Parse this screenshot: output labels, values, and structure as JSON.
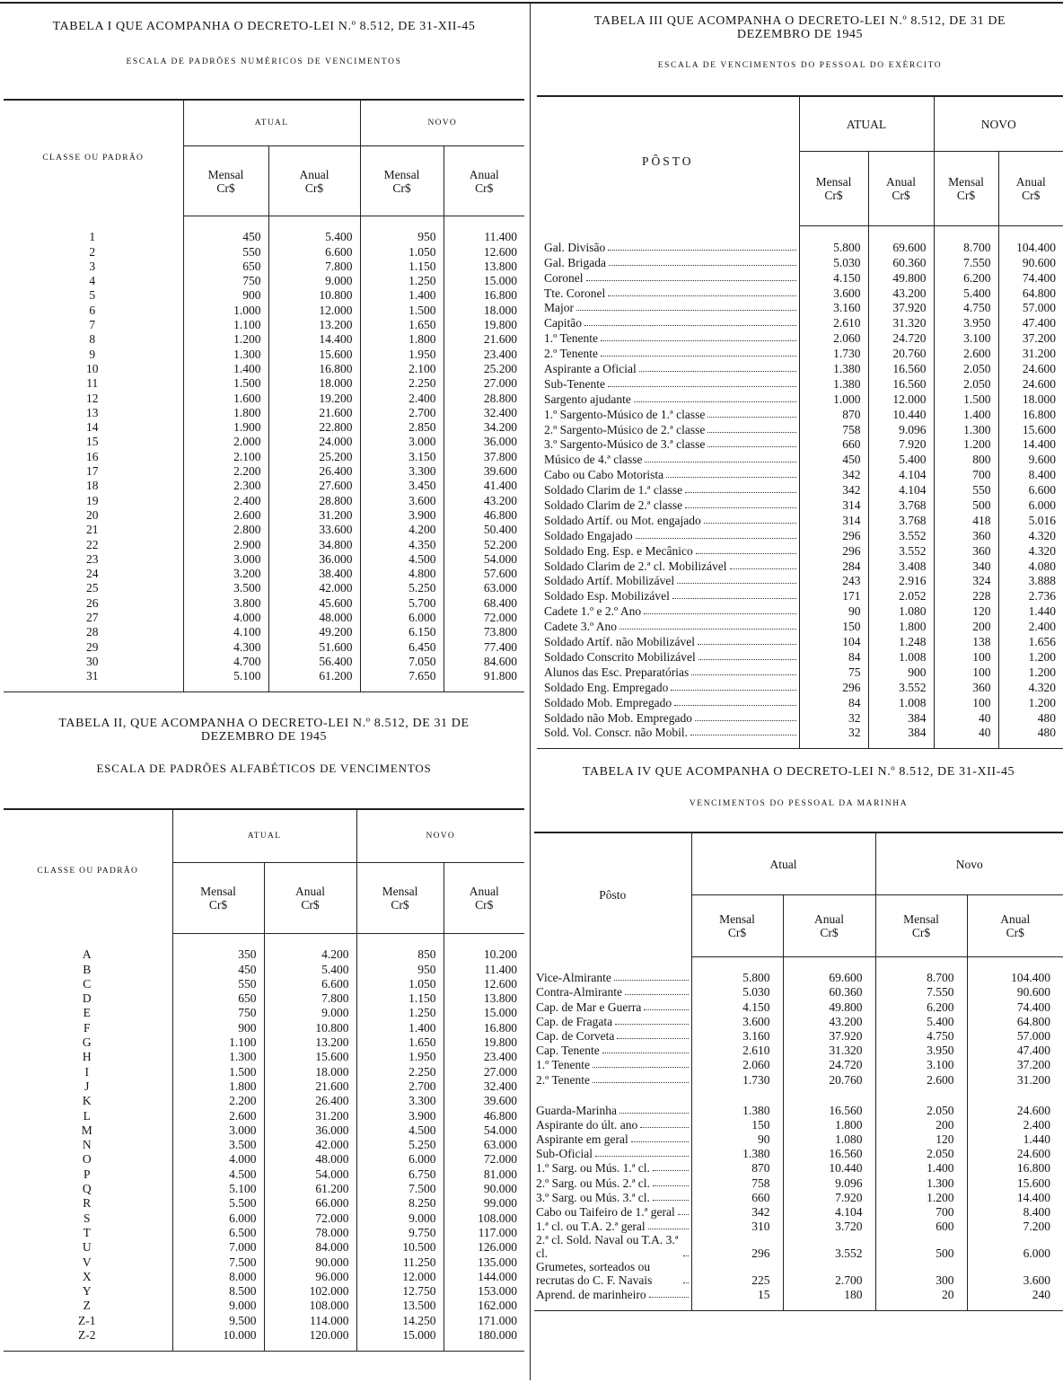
{
  "tables": [
    {
      "title": "TABELA I QUE ACOMPANHA O DECRETO-LEI N.º 8.512, DE 31-XII-45",
      "subtitle": "ESCALA DE PADRÕES NUMÉRICOS DE VENCIMENTOS",
      "label_header": "CLASSE OU PADRÃO",
      "group_headers": [
        "ATUAL",
        "NOVO"
      ],
      "column_headers": [
        "Mensal\nCr$",
        "Anual\nCr$",
        "Mensal\nCr$",
        "Anual\nCr$"
      ],
      "rows": [
        [
          "1",
          "450",
          "5.400",
          "950",
          "11.400"
        ],
        [
          "2",
          "550",
          "6.600",
          "1.050",
          "12.600"
        ],
        [
          "3",
          "650",
          "7.800",
          "1.150",
          "13.800"
        ],
        [
          "4",
          "750",
          "9.000",
          "1.250",
          "15.000"
        ],
        [
          "5",
          "900",
          "10.800",
          "1.400",
          "16.800"
        ],
        [
          "6",
          "1.000",
          "12.000",
          "1.500",
          "18.000"
        ],
        [
          "7",
          "1.100",
          "13.200",
          "1.650",
          "19.800"
        ],
        [
          "8",
          "1.200",
          "14.400",
          "1.800",
          "21.600"
        ],
        [
          "9",
          "1.300",
          "15.600",
          "1.950",
          "23.400"
        ],
        [
          "10",
          "1.400",
          "16.800",
          "2.100",
          "25.200"
        ],
        [
          "11",
          "1.500",
          "18.000",
          "2.250",
          "27.000"
        ],
        [
          "12",
          "1.600",
          "19.200",
          "2.400",
          "28.800"
        ],
        [
          "13",
          "1.800",
          "21.600",
          "2.700",
          "32.400"
        ],
        [
          "14",
          "1.900",
          "22.800",
          "2.850",
          "34.200"
        ],
        [
          "15",
          "2.000",
          "24.000",
          "3.000",
          "36.000"
        ],
        [
          "16",
          "2.100",
          "25.200",
          "3.150",
          "37.800"
        ],
        [
          "17",
          "2.200",
          "26.400",
          "3.300",
          "39.600"
        ],
        [
          "18",
          "2.300",
          "27.600",
          "3.450",
          "41.400"
        ],
        [
          "19",
          "2.400",
          "28.800",
          "3.600",
          "43.200"
        ],
        [
          "20",
          "2.600",
          "31.200",
          "3.900",
          "46.800"
        ],
        [
          "21",
          "2.800",
          "33.600",
          "4.200",
          "50.400"
        ],
        [
          "22",
          "2.900",
          "34.800",
          "4.350",
          "52.200"
        ],
        [
          "23",
          "3.000",
          "36.000",
          "4.500",
          "54.000"
        ],
        [
          "24",
          "3.200",
          "38.400",
          "4.800",
          "57.600"
        ],
        [
          "25",
          "3.500",
          "42.000",
          "5.250",
          "63.000"
        ],
        [
          "26",
          "3.800",
          "45.600",
          "5.700",
          "68.400"
        ],
        [
          "27",
          "4.000",
          "48.000",
          "6.000",
          "72.000"
        ],
        [
          "28",
          "4.100",
          "49.200",
          "6.150",
          "73.800"
        ],
        [
          "29",
          "4.300",
          "51.600",
          "6.450",
          "77.400"
        ],
        [
          "30",
          "4.700",
          "56.400",
          "7.050",
          "84.600"
        ],
        [
          "31",
          "5.100",
          "61.200",
          "7.650",
          "91.800"
        ]
      ]
    },
    {
      "title": "TABELA II, QUE ACOMPANHA O DECRETO-LEI N.º 8.512, DE 31 DE\nDEZEMBRO DE 1945",
      "subtitle": "ESCALA DE PADRÕES ALFABÉTICOS DE VENCIMENTOS",
      "label_header": "CLASSE OU PADRÃO",
      "group_headers": [
        "ATUAL",
        "NOVO"
      ],
      "column_headers": [
        "Mensal\nCr$",
        "Anual\nCr$",
        "Mensal\nCr$",
        "Anual\nCr$"
      ],
      "rows": [
        [
          "A",
          "350",
          "4.200",
          "850",
          "10.200"
        ],
        [
          "B",
          "450",
          "5.400",
          "950",
          "11.400"
        ],
        [
          "C",
          "550",
          "6.600",
          "1.050",
          "12.600"
        ],
        [
          "D",
          "650",
          "7.800",
          "1.150",
          "13.800"
        ],
        [
          "E",
          "750",
          "9.000",
          "1.250",
          "15.000"
        ],
        [
          "F",
          "900",
          "10.800",
          "1.400",
          "16.800"
        ],
        [
          "G",
          "1.100",
          "13.200",
          "1.650",
          "19.800"
        ],
        [
          "H",
          "1.300",
          "15.600",
          "1.950",
          "23.400"
        ],
        [
          "I",
          "1.500",
          "18.000",
          "2.250",
          "27.000"
        ],
        [
          "J",
          "1.800",
          "21.600",
          "2.700",
          "32.400"
        ],
        [
          "K",
          "2.200",
          "26.400",
          "3.300",
          "39.600"
        ],
        [
          "L",
          "2.600",
          "31.200",
          "3.900",
          "46.800"
        ],
        [
          "M",
          "3.000",
          "36.000",
          "4.500",
          "54.000"
        ],
        [
          "N",
          "3.500",
          "42.000",
          "5.250",
          "63.000"
        ],
        [
          "O",
          "4.000",
          "48.000",
          "6.000",
          "72.000"
        ],
        [
          "P",
          "4.500",
          "54.000",
          "6.750",
          "81.000"
        ],
        [
          "Q",
          "5.100",
          "61.200",
          "7.500",
          "90.000"
        ],
        [
          "R",
          "5.500",
          "66.000",
          "8.250",
          "99.000"
        ],
        [
          "S",
          "6.000",
          "72.000",
          "9.000",
          "108.000"
        ],
        [
          "T",
          "6.500",
          "78.000",
          "9.750",
          "117.000"
        ],
        [
          "U",
          "7.000",
          "84.000",
          "10.500",
          "126.000"
        ],
        [
          "V",
          "7.500",
          "90.000",
          "11.250",
          "135.000"
        ],
        [
          "X",
          "8.000",
          "96.000",
          "12.000",
          "144.000"
        ],
        [
          "Y",
          "8.500",
          "102.000",
          "12.750",
          "153.000"
        ],
        [
          "Z",
          "9.000",
          "108.000",
          "13.500",
          "162.000"
        ],
        [
          "Z-1",
          "9.500",
          "114.000",
          "14.250",
          "171.000"
        ],
        [
          "Z-2",
          "10.000",
          "120.000",
          "15.000",
          "180.000"
        ]
      ]
    },
    {
      "title": "TABELA III QUE ACOMPANHA O DECRETO-LEI N.º 8.512, DE 31 DE\nDEZEMBRO DE 1945",
      "subtitle": "ESCALA DE VENCIMENTOS DO PESSOAL DO EXÉRCITO",
      "label_header": "PÔSTO",
      "group_headers": [
        "ATUAL",
        "NOVO"
      ],
      "column_headers": [
        "Mensal\nCr$",
        "Anual\nCr$",
        "Mensal\nCr$",
        "Anual\nCr$"
      ],
      "rows": [
        [
          "Gal. Divisão",
          "5.800",
          "69.600",
          "8.700",
          "104.400"
        ],
        [
          "Gal. Brigada",
          "5.030",
          "60.360",
          "7.550",
          "90.600"
        ],
        [
          "Coronel",
          "4.150",
          "49.800",
          "6.200",
          "74.400"
        ],
        [
          "Tte. Coronel",
          "3.600",
          "43.200",
          "5.400",
          "64.800"
        ],
        [
          "Major",
          "3.160",
          "37.920",
          "4.750",
          "57.000"
        ],
        [
          "Capitão",
          "2.610",
          "31.320",
          "3.950",
          "47.400"
        ],
        [
          "1.º Tenente",
          "2.060",
          "24.720",
          "3.100",
          "37.200"
        ],
        [
          "2.º Tenente",
          "1.730",
          "20.760",
          "2.600",
          "31.200"
        ],
        [
          "Aspirante a Oficial",
          "1.380",
          "16.560",
          "2.050",
          "24.600"
        ],
        [
          "Sub-Tenente",
          "1.380",
          "16.560",
          "2.050",
          "24.600"
        ],
        [
          "Sargento ajudante",
          "1.000",
          "12.000",
          "1.500",
          "18.000"
        ],
        [
          "1.º Sargento-Músico de 1.ª classe",
          "870",
          "10.440",
          "1.400",
          "16.800"
        ],
        [
          "2.º Sargento-Músico de 2.ª classe",
          "758",
          "9.096",
          "1.300",
          "15.600"
        ],
        [
          "3.º Sargento-Músico de 3.ª classe",
          "660",
          "7.920",
          "1.200",
          "14.400"
        ],
        [
          "Músico de 4.ª classe",
          "450",
          "5.400",
          "800",
          "9.600"
        ],
        [
          "Cabo ou Cabo Motorista",
          "342",
          "4.104",
          "700",
          "8.400"
        ],
        [
          "Soldado Clarim de 1.ª classe",
          "342",
          "4.104",
          "550",
          "6.600"
        ],
        [
          "Soldado Clarim de 2.ª classe",
          "314",
          "3.768",
          "500",
          "6.000"
        ],
        [
          "Soldado Artíf. ou Mot. engajado",
          "314",
          "3.768",
          "418",
          "5.016"
        ],
        [
          "Soldado Engajado",
          "296",
          "3.552",
          "360",
          "4.320"
        ],
        [
          "Soldado Eng. Esp. e Mecânico",
          "296",
          "3.552",
          "360",
          "4.320"
        ],
        [
          "Soldado Clarim de 2.ª cl. Mobilizável",
          "284",
          "3.408",
          "340",
          "4.080"
        ],
        [
          "Soldado Artíf. Mobilizável",
          "243",
          "2.916",
          "324",
          "3.888"
        ],
        [
          "Soldado Esp. Mobilizável",
          "171",
          "2.052",
          "228",
          "2.736"
        ],
        [
          "Cadete 1.º e 2.º Ano",
          "90",
          "1.080",
          "120",
          "1.440"
        ],
        [
          "Cadete 3.º Ano",
          "150",
          "1.800",
          "200",
          "2.400"
        ],
        [
          "Soldado Artíf. não Mobilizável",
          "104",
          "1.248",
          "138",
          "1.656"
        ],
        [
          "Soldado Conscrito Mobilizável",
          "84",
          "1.008",
          "100",
          "1.200"
        ],
        [
          "Alunos das Esc. Preparatórias",
          "75",
          "900",
          "100",
          "1.200"
        ],
        [
          "Soldado Eng. Empregado",
          "296",
          "3.552",
          "360",
          "4.320"
        ],
        [
          "Soldado Mob. Empregado",
          "84",
          "1.008",
          "100",
          "1.200"
        ],
        [
          "Soldado não Mob. Empregado",
          "32",
          "384",
          "40",
          "480"
        ],
        [
          "Sold. Vol. Conscr. não Mobil.",
          "32",
          "384",
          "40",
          "480"
        ]
      ]
    },
    {
      "title": "TABELA IV QUE ACOMPANHA O DECRETO-LEI N.º 8.512, DE 31-XII-45",
      "subtitle": "VENCIMENTOS DO PESSOAL DA MARINHA",
      "label_header": "Pôsto",
      "group_headers": [
        "Atual",
        "Novo"
      ],
      "column_headers": [
        "Mensal\nCr$",
        "Anual\nCr$",
        "Mensal\nCr$",
        "Anual\nCr$"
      ],
      "rows": [
        [
          "Vice-Almirante",
          "5.800",
          "69.600",
          "8.700",
          "104.400"
        ],
        [
          "Contra-Almirante",
          "5.030",
          "60.360",
          "7.550",
          "90.600"
        ],
        [
          "Cap. de Mar e Guerra",
          "4.150",
          "49.800",
          "6.200",
          "74.400"
        ],
        [
          "Cap. de Fragata",
          "3.600",
          "43.200",
          "5.400",
          "64.800"
        ],
        [
          "Cap. de Corveta",
          "3.160",
          "37.920",
          "4.750",
          "57.000"
        ],
        [
          "Cap. Tenente",
          "2.610",
          "31.320",
          "3.950",
          "47.400"
        ],
        [
          "1.º Tenente",
          "2.060",
          "24.720",
          "3.100",
          "37.200"
        ],
        [
          "2.º Tenente",
          "1.730",
          "20.760",
          "2.600",
          "31.200"
        ],
        [
          "Guarda-Marinha",
          "1.380",
          "16.560",
          "2.050",
          "24.600"
        ],
        [
          "Aspirante do últ. ano",
          "150",
          "1.800",
          "200",
          "2.400"
        ],
        [
          "Aspirante em geral",
          "90",
          "1.080",
          "120",
          "1.440"
        ],
        [
          "Sub-Oficial",
          "1.380",
          "16.560",
          "2.050",
          "24.600"
        ],
        [
          "1.º Sarg. ou Mús. 1.ª cl.",
          "870",
          "10.440",
          "1.400",
          "16.800"
        ],
        [
          "2.º Sarg. ou Mús. 2.ª cl.",
          "758",
          "9.096",
          "1.300",
          "15.600"
        ],
        [
          "3.º Sarg. ou Mús. 3.ª cl.",
          "660",
          "7.920",
          "1.200",
          "14.400"
        ],
        [
          "Cabo ou Taifeiro de 1.ª geral",
          "342",
          "4.104",
          "700",
          "8.400"
        ],
        [
          "1.ª cl. ou T.A. 2.ª geral",
          "310",
          "3.720",
          "600",
          "7.200"
        ],
        [
          "2.ª cl. Sold. Naval ou T.A. 3.ª cl.",
          "296",
          "3.552",
          "500",
          "6.000"
        ],
        [
          "Grumetes, sorteados ou recrutas do C. F. Navais",
          "225",
          "2.700",
          "300",
          "3.600"
        ],
        [
          "Aprend. de marinheiro",
          "15",
          "180",
          "20",
          "240"
        ]
      ]
    }
  ]
}
